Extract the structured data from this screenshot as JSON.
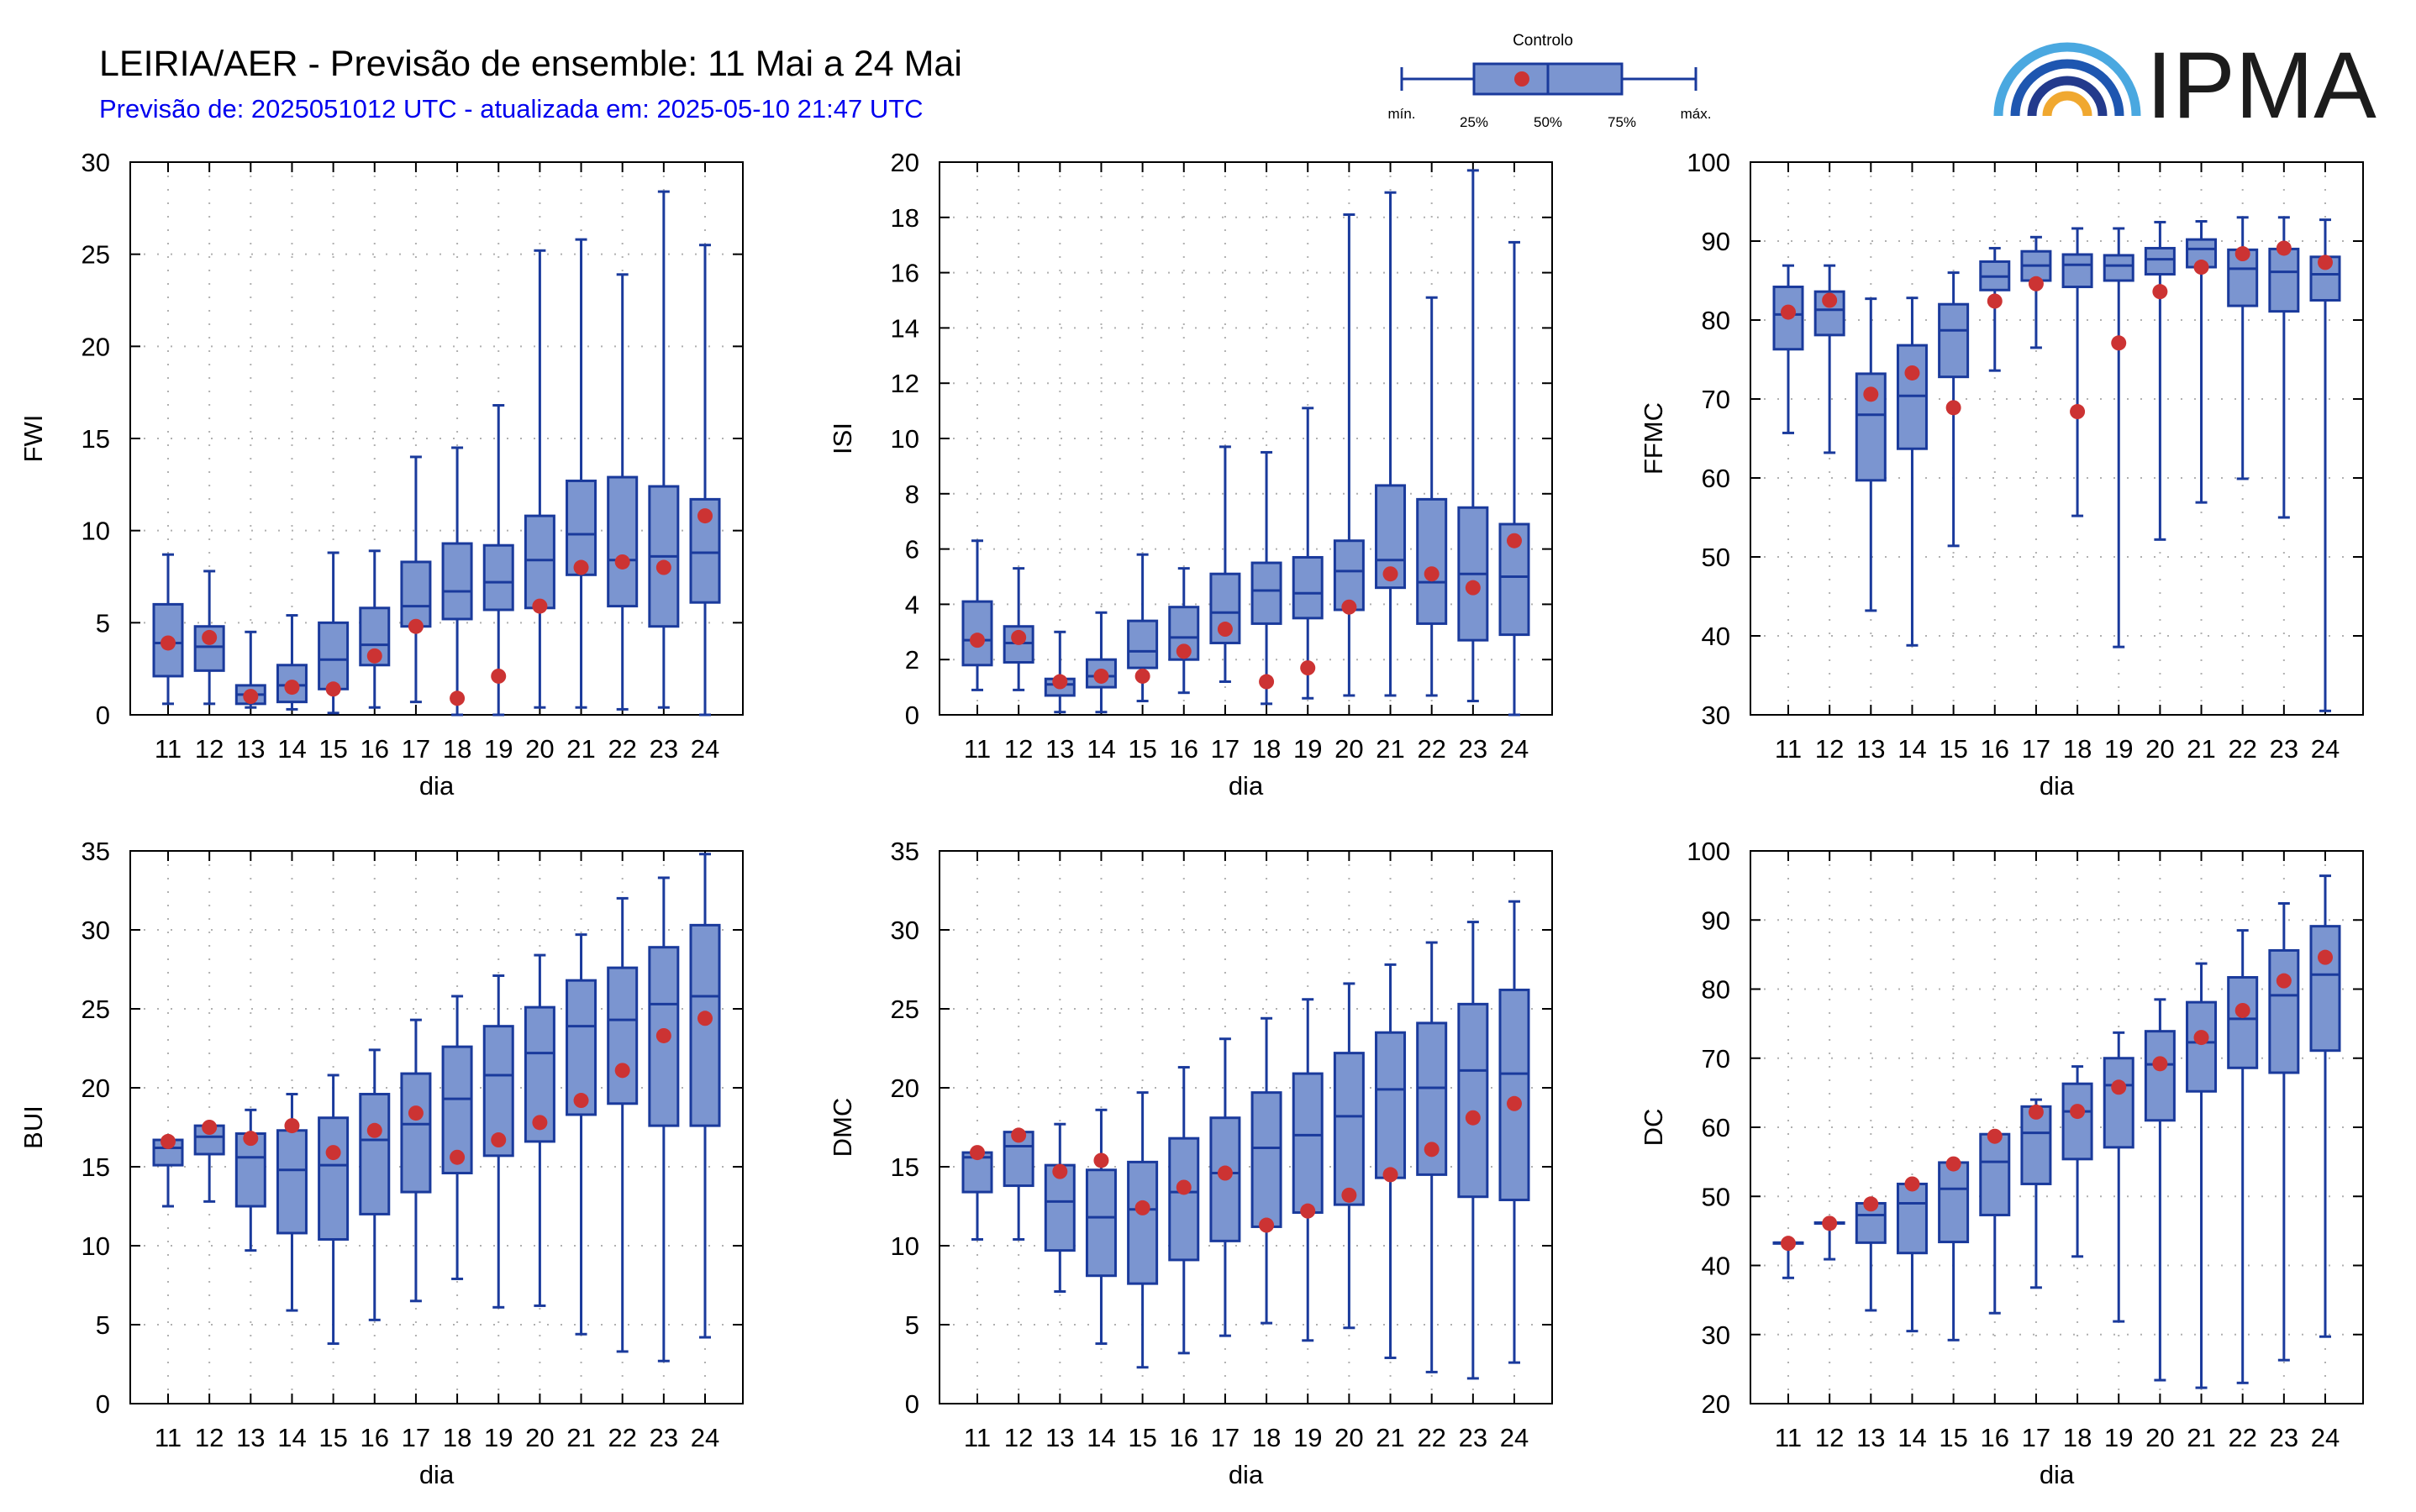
{
  "header": {
    "title": "LEIRIA/AER - Previsão de ensemble: 11 Mai a 24 Mai",
    "subtitle": "Previsão de: 2025051012 UTC - atualizada em: 2025-05-10 21:47 UTC"
  },
  "legend": {
    "title": "Controlo",
    "labels": [
      "mín.",
      "25%",
      "50%",
      "75%",
      "máx."
    ]
  },
  "logo": {
    "text": "IPMA"
  },
  "colors": {
    "box_fill": "#7b95d0",
    "box_stroke": "#1a3a9c",
    "control_dot": "#cc3333",
    "grid_dot": "#b0b0b0"
  },
  "chart_data": [
    {
      "type": "boxplot",
      "ylabel": "FWI",
      "xlabel": "dia",
      "categories": [
        "11",
        "12",
        "13",
        "14",
        "15",
        "16",
        "17",
        "18",
        "19",
        "20",
        "21",
        "22",
        "23",
        "24"
      ],
      "ylim": [
        0,
        30
      ],
      "yticks": [
        0,
        5,
        10,
        15,
        20,
        25,
        30
      ],
      "min": [
        0.6,
        0.6,
        0.4,
        0.3,
        0.1,
        0.4,
        0.7,
        0.0,
        0.0,
        0.4,
        0.4,
        0.3,
        0.4,
        0.0
      ],
      "q1": [
        2.1,
        2.4,
        0.6,
        0.7,
        1.4,
        2.7,
        4.8,
        5.2,
        5.7,
        5.8,
        7.6,
        5.9,
        4.8,
        6.1
      ],
      "median": [
        3.9,
        3.7,
        1.1,
        1.6,
        3.0,
        3.8,
        5.9,
        6.7,
        7.2,
        8.4,
        9.8,
        8.4,
        8.6,
        8.8
      ],
      "q3": [
        6.0,
        4.8,
        1.6,
        2.7,
        5.0,
        5.8,
        8.3,
        9.3,
        9.2,
        10.8,
        12.7,
        12.9,
        12.4,
        11.7
      ],
      "max": [
        8.7,
        7.8,
        4.5,
        5.4,
        8.8,
        8.9,
        14.0,
        14.5,
        16.8,
        25.2,
        25.8,
        23.9,
        28.4,
        25.5
      ],
      "control": [
        3.9,
        4.2,
        1.0,
        1.5,
        1.4,
        3.2,
        4.8,
        0.9,
        2.1,
        5.9,
        8.0,
        8.3,
        8.0,
        10.8
      ]
    },
    {
      "type": "boxplot",
      "ylabel": "ISI",
      "xlabel": "dia",
      "categories": [
        "11",
        "12",
        "13",
        "14",
        "15",
        "16",
        "17",
        "18",
        "19",
        "20",
        "21",
        "22",
        "23",
        "24"
      ],
      "ylim": [
        0,
        20
      ],
      "yticks": [
        0,
        2,
        4,
        6,
        8,
        10,
        12,
        14,
        16,
        18,
        20
      ],
      "min": [
        0.9,
        0.9,
        0.1,
        0.1,
        0.5,
        0.8,
        1.2,
        0.4,
        0.6,
        0.7,
        0.7,
        0.7,
        0.5,
        0.0
      ],
      "q1": [
        1.8,
        1.9,
        0.7,
        1.0,
        1.7,
        2.0,
        2.6,
        3.3,
        3.5,
        3.8,
        4.6,
        3.3,
        2.7,
        2.9
      ],
      "median": [
        2.7,
        2.6,
        1.1,
        1.4,
        2.3,
        2.8,
        3.7,
        4.5,
        4.4,
        5.2,
        5.6,
        4.8,
        5.1,
        5.0
      ],
      "q3": [
        4.1,
        3.2,
        1.3,
        2.0,
        3.4,
        3.9,
        5.1,
        5.5,
        5.7,
        6.3,
        8.3,
        7.8,
        7.5,
        6.9
      ],
      "max": [
        6.3,
        5.3,
        3.0,
        3.7,
        5.8,
        5.3,
        9.7,
        9.5,
        11.1,
        18.1,
        18.9,
        15.1,
        19.7,
        17.1
      ],
      "control": [
        2.7,
        2.8,
        1.2,
        1.4,
        1.4,
        2.3,
        3.1,
        1.2,
        1.7,
        3.9,
        5.1,
        5.1,
        4.6,
        6.3
      ]
    },
    {
      "type": "boxplot",
      "ylabel": "FFMC",
      "xlabel": "dia",
      "categories": [
        "11",
        "12",
        "13",
        "14",
        "15",
        "16",
        "17",
        "18",
        "19",
        "20",
        "21",
        "22",
        "23",
        "24"
      ],
      "ylim": [
        30,
        100
      ],
      "yticks": [
        30,
        40,
        50,
        60,
        70,
        80,
        90,
        100
      ],
      "min": [
        65.7,
        63.2,
        43.2,
        38.8,
        51.4,
        73.6,
        76.5,
        55.2,
        38.6,
        52.2,
        56.9,
        59.9,
        55.0,
        30.5
      ],
      "q1": [
        76.3,
        78.1,
        59.7,
        63.7,
        72.8,
        83.8,
        85.0,
        84.2,
        85.0,
        85.8,
        86.7,
        81.8,
        81.1,
        82.5
      ],
      "median": [
        80.7,
        81.3,
        68.0,
        70.4,
        78.7,
        85.5,
        86.9,
        87.0,
        86.9,
        87.7,
        89.0,
        86.5,
        86.1,
        85.8
      ],
      "q3": [
        84.2,
        83.6,
        73.2,
        76.8,
        82.0,
        87.4,
        88.7,
        88.3,
        88.2,
        89.1,
        90.2,
        88.9,
        89.0,
        88.0
      ],
      "max": [
        86.9,
        86.9,
        82.7,
        82.8,
        86.0,
        89.1,
        90.5,
        91.6,
        91.6,
        92.4,
        92.5,
        93.0,
        93.0,
        92.7
      ],
      "control": [
        81.0,
        82.5,
        70.6,
        73.3,
        68.9,
        82.4,
        84.6,
        68.4,
        77.1,
        83.6,
        86.7,
        88.4,
        89.1,
        87.3
      ]
    },
    {
      "type": "boxplot",
      "ylabel": "BUI",
      "xlabel": "dia",
      "categories": [
        "11",
        "12",
        "13",
        "14",
        "15",
        "16",
        "17",
        "18",
        "19",
        "20",
        "21",
        "22",
        "23",
        "24"
      ],
      "ylim": [
        0,
        35
      ],
      "yticks": [
        0,
        5,
        10,
        15,
        20,
        25,
        30,
        35
      ],
      "min": [
        12.5,
        12.8,
        9.7,
        5.9,
        3.8,
        5.3,
        6.5,
        7.9,
        6.1,
        6.2,
        4.4,
        3.3,
        2.7,
        4.2
      ],
      "q1": [
        15.1,
        15.8,
        12.5,
        10.8,
        10.4,
        12.0,
        13.4,
        14.6,
        15.7,
        16.6,
        18.3,
        19.0,
        17.6,
        17.6
      ],
      "median": [
        16.2,
        16.9,
        15.6,
        14.8,
        15.1,
        16.7,
        17.7,
        19.3,
        20.8,
        22.2,
        23.9,
        24.3,
        25.3,
        25.8
      ],
      "q3": [
        16.7,
        17.6,
        17.1,
        17.3,
        18.1,
        19.6,
        20.9,
        22.6,
        23.9,
        25.1,
        26.8,
        27.6,
        28.9,
        30.3
      ],
      "max": [
        16.7,
        17.6,
        18.6,
        19.6,
        20.8,
        22.4,
        24.3,
        25.8,
        27.1,
        28.4,
        29.7,
        32.0,
        33.3,
        34.8
      ],
      "control": [
        16.6,
        17.5,
        16.8,
        17.6,
        15.9,
        17.3,
        18.4,
        15.6,
        16.7,
        17.8,
        19.2,
        21.1,
        23.3,
        24.4
      ]
    },
    {
      "type": "boxplot",
      "ylabel": "DMC",
      "xlabel": "dia",
      "categories": [
        "11",
        "12",
        "13",
        "14",
        "15",
        "16",
        "17",
        "18",
        "19",
        "20",
        "21",
        "22",
        "23",
        "24"
      ],
      "ylim": [
        0,
        35
      ],
      "yticks": [
        0,
        5,
        10,
        15,
        20,
        25,
        30,
        35
      ],
      "min": [
        10.4,
        10.4,
        7.1,
        3.8,
        2.3,
        3.2,
        4.3,
        5.1,
        4.0,
        4.8,
        2.9,
        2.0,
        1.6,
        2.6
      ],
      "q1": [
        13.4,
        13.8,
        9.7,
        8.1,
        7.6,
        9.1,
        10.3,
        11.2,
        12.1,
        12.6,
        14.3,
        14.5,
        13.1,
        12.9
      ],
      "median": [
        15.6,
        16.3,
        12.8,
        11.8,
        12.3,
        13.4,
        14.6,
        16.2,
        17.0,
        18.2,
        19.9,
        20.0,
        21.1,
        20.9
      ],
      "q3": [
        15.9,
        17.2,
        15.1,
        14.8,
        15.3,
        16.8,
        18.1,
        19.7,
        20.9,
        22.2,
        23.5,
        24.1,
        25.3,
        26.2
      ],
      "max": [
        15.9,
        17.2,
        17.7,
        18.6,
        19.7,
        21.3,
        23.1,
        24.4,
        25.6,
        26.6,
        27.8,
        29.2,
        30.5,
        31.8
      ],
      "control": [
        15.9,
        17.0,
        14.7,
        15.4,
        12.4,
        13.7,
        14.6,
        11.3,
        12.2,
        13.2,
        14.5,
        16.1,
        18.1,
        19.0
      ]
    },
    {
      "type": "boxplot",
      "ylabel": "DC",
      "xlabel": "dia",
      "categories": [
        "11",
        "12",
        "13",
        "14",
        "15",
        "16",
        "17",
        "18",
        "19",
        "20",
        "21",
        "22",
        "23",
        "24"
      ],
      "ylim": [
        20,
        100
      ],
      "yticks": [
        20,
        30,
        40,
        50,
        60,
        70,
        80,
        90,
        100
      ],
      "min": [
        38.2,
        40.9,
        33.5,
        30.5,
        29.2,
        33.1,
        36.8,
        41.3,
        31.9,
        23.4,
        22.3,
        23.0,
        26.3,
        29.7
      ],
      "q1": [
        43.3,
        46.2,
        43.3,
        41.8,
        43.4,
        47.3,
        51.8,
        55.4,
        57.1,
        61.0,
        65.2,
        68.6,
        67.9,
        71.1
      ],
      "median": [
        43.3,
        46.2,
        47.3,
        49.0,
        51.1,
        55.0,
        59.2,
        62.3,
        66.1,
        69.1,
        72.3,
        75.7,
        79.1,
        82.1
      ],
      "q3": [
        43.3,
        46.2,
        49.0,
        51.8,
        54.9,
        59.0,
        63.0,
        66.3,
        70.0,
        73.9,
        78.1,
        81.7,
        85.6,
        89.1
      ],
      "max": [
        43.3,
        46.2,
        49.0,
        51.8,
        54.9,
        59.0,
        64.0,
        68.8,
        73.7,
        78.5,
        83.7,
        88.5,
        92.4,
        96.4
      ],
      "control": [
        43.2,
        46.1,
        48.9,
        51.8,
        54.7,
        58.7,
        62.2,
        62.3,
        65.8,
        69.2,
        73.0,
        76.9,
        81.2,
        84.6
      ]
    }
  ]
}
